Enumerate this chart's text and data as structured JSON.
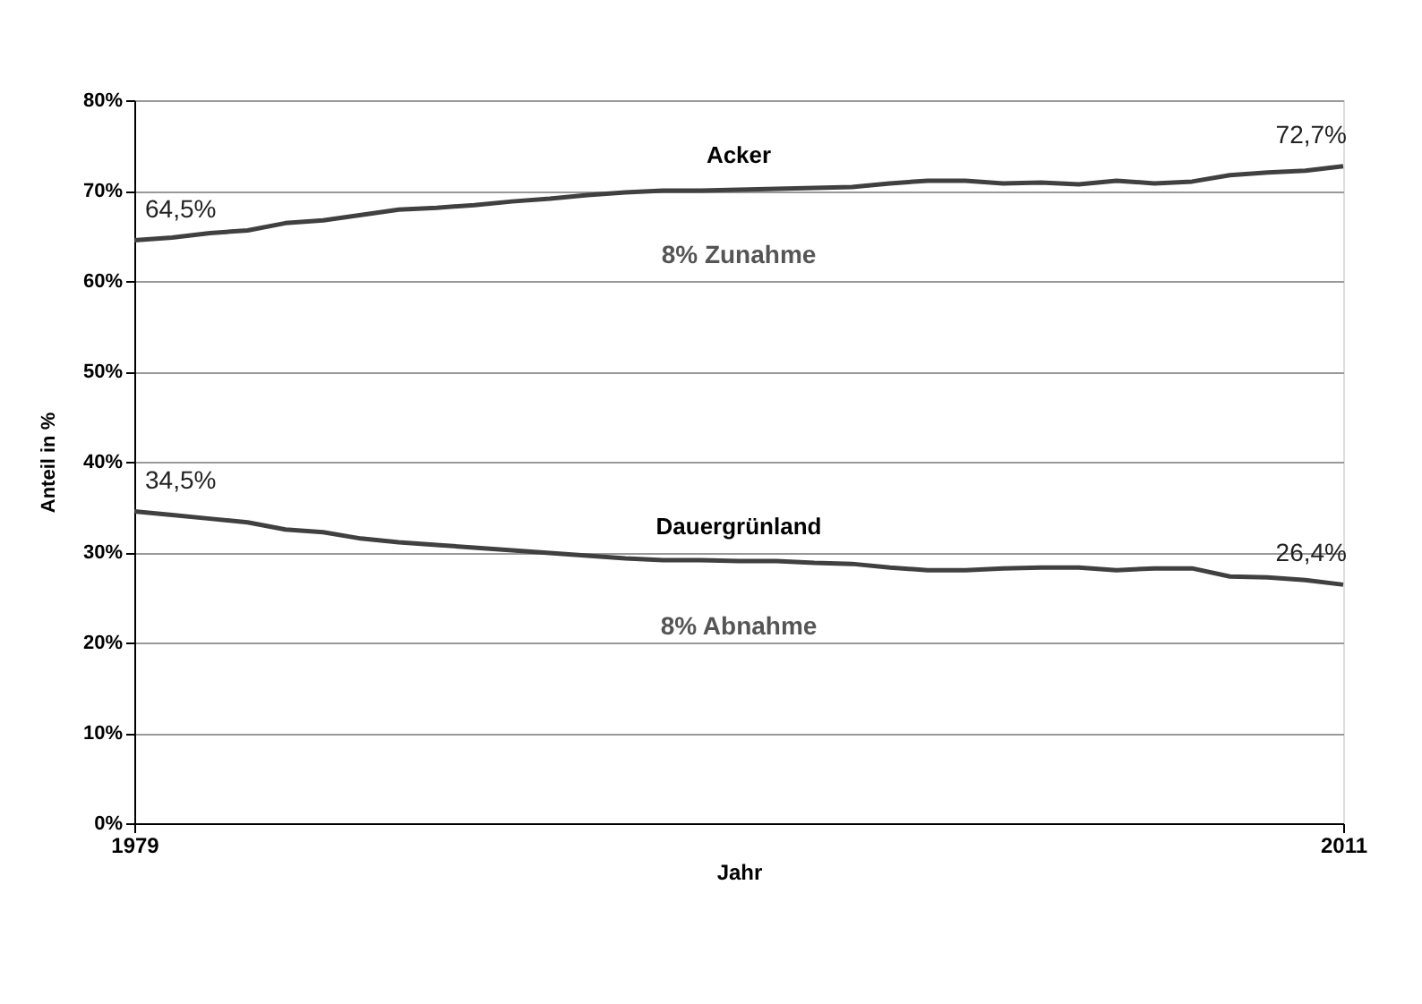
{
  "chart_data": {
    "type": "line",
    "xlabel": "Jahr",
    "ylabel": "Anteil in %",
    "x": [
      1979,
      1980,
      1981,
      1982,
      1983,
      1984,
      1985,
      1986,
      1987,
      1988,
      1989,
      1990,
      1991,
      1992,
      1993,
      1994,
      1995,
      1996,
      1997,
      1998,
      1999,
      2000,
      2001,
      2002,
      2003,
      2004,
      2005,
      2006,
      2007,
      2008,
      2009,
      2010,
      2011
    ],
    "xlim": [
      1979,
      2011
    ],
    "xticks": [
      1979,
      2011
    ],
    "ylim": [
      0,
      80
    ],
    "yticks": [
      {
        "value": 0,
        "label": "0%"
      },
      {
        "value": 10,
        "label": "10%"
      },
      {
        "value": 20,
        "label": "20%"
      },
      {
        "value": 30,
        "label": "30%"
      },
      {
        "value": 40,
        "label": "40%"
      },
      {
        "value": 50,
        "label": "50%"
      },
      {
        "value": 60,
        "label": "60%"
      },
      {
        "value": 70,
        "label": "70%"
      },
      {
        "value": 80,
        "label": "80%"
      }
    ],
    "grid": "y",
    "marker": "none",
    "line_style": "solid",
    "series": [
      {
        "name": "Acker",
        "color": "#404040",
        "values": [
          64.5,
          64.8,
          65.3,
          65.6,
          66.4,
          66.7,
          67.3,
          67.9,
          68.1,
          68.4,
          68.8,
          69.1,
          69.5,
          69.8,
          70.0,
          70.0,
          70.1,
          70.2,
          70.3,
          70.4,
          70.8,
          71.1,
          71.1,
          70.8,
          70.9,
          70.7,
          71.1,
          70.8,
          71.0,
          71.7,
          72.0,
          72.2,
          72.7
        ],
        "value_labels": [
          "64,5%",
          null,
          null,
          null,
          null,
          null,
          null,
          null,
          null,
          null,
          null,
          null,
          null,
          null,
          null,
          null,
          null,
          null,
          null,
          null,
          null,
          null,
          null,
          null,
          null,
          null,
          null,
          null,
          null,
          null,
          null,
          null,
          "72,7%"
        ]
      },
      {
        "name": "Dauergrünland",
        "color": "#404040",
        "values": [
          34.5,
          34.1,
          33.7,
          33.3,
          32.5,
          32.2,
          31.5,
          31.1,
          30.8,
          30.5,
          30.2,
          29.9,
          29.6,
          29.3,
          29.1,
          29.1,
          29.0,
          29.0,
          28.8,
          28.7,
          28.3,
          28.0,
          28.0,
          28.2,
          28.3,
          28.3,
          28.0,
          28.2,
          28.2,
          27.3,
          27.2,
          26.9,
          26.4
        ],
        "value_labels": [
          "34,5%",
          null,
          null,
          null,
          null,
          null,
          null,
          null,
          null,
          null,
          null,
          null,
          null,
          null,
          null,
          null,
          null,
          null,
          null,
          null,
          null,
          null,
          null,
          null,
          null,
          null,
          null,
          null,
          null,
          null,
          null,
          null,
          "26,4%"
        ]
      }
    ],
    "annotations": [
      "8% Zunahme",
      "8% Abnahme"
    ]
  }
}
